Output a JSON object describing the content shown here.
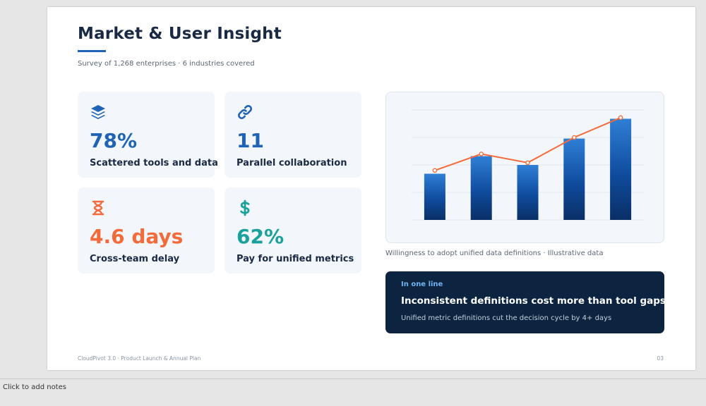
{
  "slide": {
    "title": "Market & User Insight",
    "subtitle": "Survey of 1,268 enterprises · 6 industries covered",
    "footer_left": "CloudPivot 3.0 · Product Launch & Annual Plan",
    "page_number": "03"
  },
  "colors": {
    "navy": "#1a2a44",
    "accent_blue": "#1f63b5",
    "accent_orange": "#f36b3b",
    "accent_teal": "#1aa19b",
    "dark_panel": "#0d2440"
  },
  "stats": [
    {
      "icon": "layers-icon",
      "value": "78%",
      "label": "Scattered tools and data",
      "color": "#1f63b5"
    },
    {
      "icon": "link-icon",
      "value": "11",
      "label": "Parallel collaboration",
      "color": "#1f63b5"
    },
    {
      "icon": "hourglass-icon",
      "value": "4.6 days",
      "label": "Cross-team delay",
      "color": "#f36b3b"
    },
    {
      "icon": "dollar-icon",
      "value": "62%",
      "label": "Pay for unified metrics",
      "color": "#1aa19b"
    }
  ],
  "chart_caption": "Willingness to adopt unified data definitions · Illustrative data",
  "chart_data": {
    "type": "bar",
    "categories": [
      "",
      "",
      "",
      "",
      ""
    ],
    "series": [
      {
        "values": [
          42,
          58,
          50,
          74,
          92
        ]
      },
      {
        "values": [
          45,
          60,
          52,
          75,
          93
        ]
      }
    ],
    "ylim": [
      0,
      100
    ],
    "grid": true,
    "legend": "none",
    "xlabel": "",
    "ylabel": ""
  },
  "oneline": {
    "kicker": "In one line",
    "headline": "Inconsistent definitions cost more than tool gaps.",
    "sub": "Unified metric definitions cut the decision cycle by 4+ days"
  },
  "notes": {
    "placeholder": "Click to add notes"
  }
}
